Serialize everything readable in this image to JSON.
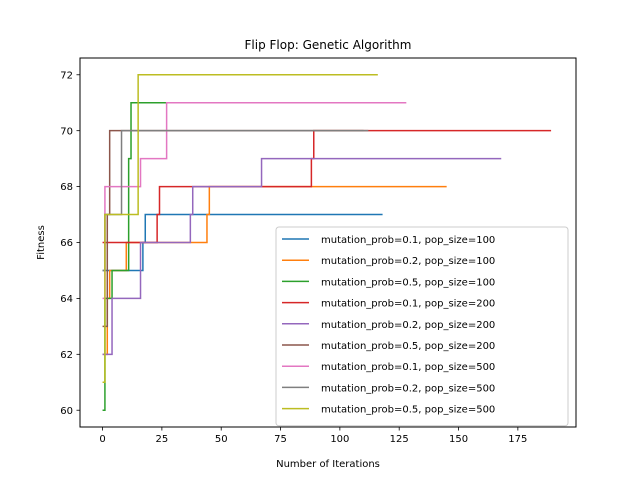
{
  "chart_data": {
    "type": "line",
    "title": "Flip Flop: Genetic Algorithm",
    "xlabel": "Number of Iterations",
    "ylabel": "Fitness",
    "xlim": [
      -9.5,
      199.5
    ],
    "ylim": [
      59.4,
      72.6
    ],
    "xticks": [
      0,
      25,
      50,
      75,
      100,
      125,
      150,
      175
    ],
    "yticks": [
      60,
      62,
      64,
      66,
      68,
      70,
      72
    ],
    "grid": false,
    "legend_position": "lower right",
    "step": "post",
    "series": [
      {
        "name": "mutation_prob=0.1, pop_size=100",
        "color": "#1f77b4",
        "points": [
          [
            0,
            65
          ],
          [
            17,
            65
          ],
          [
            17,
            66
          ],
          [
            18,
            66
          ],
          [
            18,
            67
          ],
          [
            118,
            67
          ]
        ]
      },
      {
        "name": "mutation_prob=0.2, pop_size=100",
        "color": "#ff7f0e",
        "points": [
          [
            0,
            62
          ],
          [
            2,
            62
          ],
          [
            2,
            64
          ],
          [
            3,
            64
          ],
          [
            3,
            65
          ],
          [
            10,
            65
          ],
          [
            10,
            66
          ],
          [
            44,
            66
          ],
          [
            44,
            67
          ],
          [
            45,
            67
          ],
          [
            45,
            68
          ],
          [
            145,
            68
          ]
        ]
      },
      {
        "name": "mutation_prob=0.5, pop_size=100",
        "color": "#2ca02c",
        "points": [
          [
            0,
            60
          ],
          [
            1,
            60
          ],
          [
            1,
            64
          ],
          [
            4,
            64
          ],
          [
            4,
            65
          ],
          [
            11,
            65
          ],
          [
            11,
            69
          ],
          [
            12,
            69
          ],
          [
            12,
            71
          ],
          [
            112,
            71
          ]
        ]
      },
      {
        "name": "mutation_prob=0.1, pop_size=200",
        "color": "#d62728",
        "points": [
          [
            0,
            66
          ],
          [
            17,
            66
          ],
          [
            17,
            66
          ],
          [
            23,
            66
          ],
          [
            23,
            67
          ],
          [
            24,
            67
          ],
          [
            24,
            68
          ],
          [
            88,
            68
          ],
          [
            88,
            69
          ],
          [
            89,
            69
          ],
          [
            89,
            70
          ],
          [
            189,
            70
          ]
        ]
      },
      {
        "name": "mutation_prob=0.2, pop_size=200",
        "color": "#9467bd",
        "points": [
          [
            0,
            62
          ],
          [
            4,
            62
          ],
          [
            4,
            64
          ],
          [
            16,
            64
          ],
          [
            16,
            66
          ],
          [
            37,
            66
          ],
          [
            37,
            67
          ],
          [
            38,
            67
          ],
          [
            38,
            68
          ],
          [
            67,
            68
          ],
          [
            67,
            69
          ],
          [
            68,
            69
          ],
          [
            168,
            69
          ]
        ]
      },
      {
        "name": "mutation_prob=0.5, pop_size=200",
        "color": "#8c564b",
        "points": [
          [
            0,
            63
          ],
          [
            2,
            63
          ],
          [
            2,
            67
          ],
          [
            3,
            67
          ],
          [
            3,
            70
          ],
          [
            110,
            70
          ]
        ]
      },
      {
        "name": "mutation_prob=0.1, pop_size=500",
        "color": "#e377c2",
        "points": [
          [
            0,
            64
          ],
          [
            1,
            64
          ],
          [
            1,
            68
          ],
          [
            16,
            68
          ],
          [
            16,
            69
          ],
          [
            27,
            69
          ],
          [
            27,
            71
          ],
          [
            128,
            71
          ]
        ]
      },
      {
        "name": "mutation_prob=0.2, pop_size=500",
        "color": "#7f7f7f",
        "points": [
          [
            0,
            65
          ],
          [
            1,
            65
          ],
          [
            1,
            67
          ],
          [
            8,
            67
          ],
          [
            8,
            70
          ],
          [
            112,
            70
          ]
        ]
      },
      {
        "name": "mutation_prob=0.5, pop_size=500",
        "color": "#bcbd22",
        "points": [
          [
            0,
            61
          ],
          [
            1,
            61
          ],
          [
            1,
            67
          ],
          [
            15,
            67
          ],
          [
            15,
            72
          ],
          [
            116,
            72
          ]
        ]
      }
    ]
  }
}
